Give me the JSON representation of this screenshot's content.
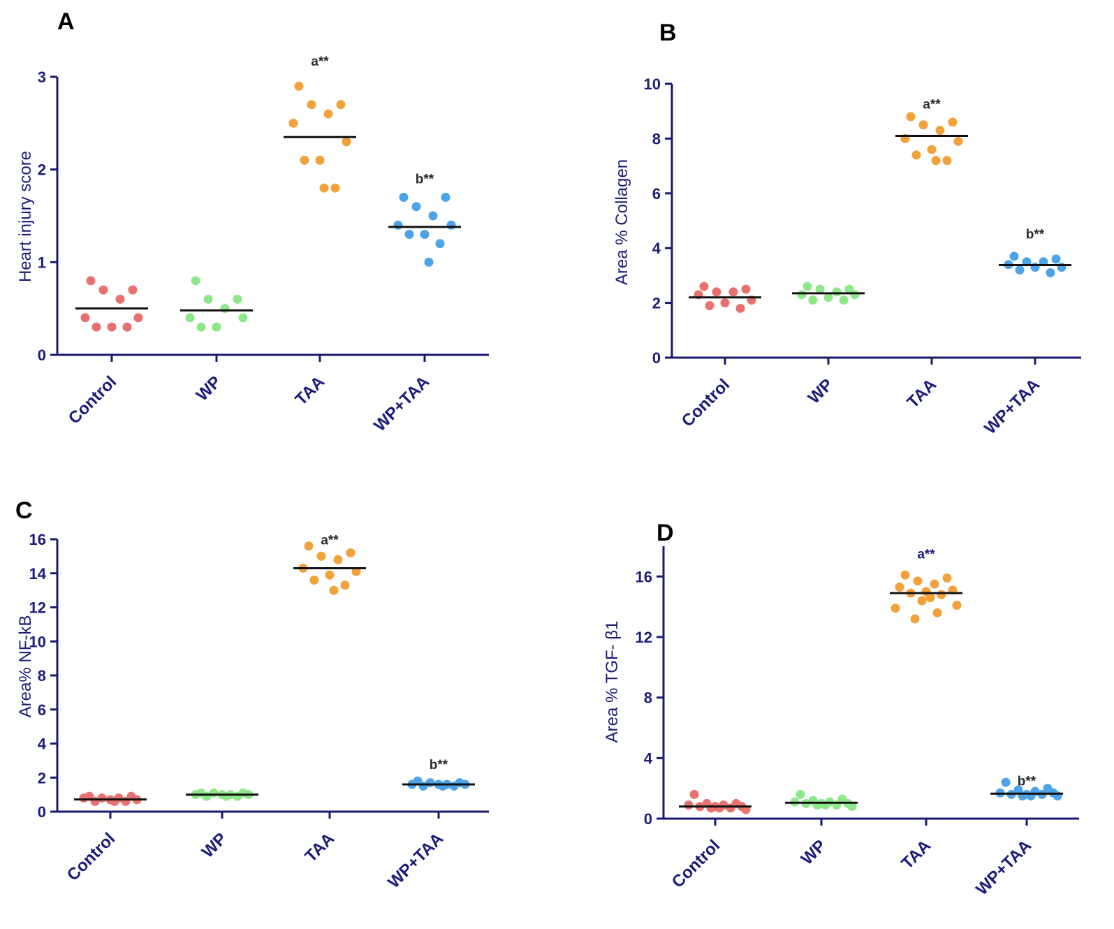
{
  "colors": {
    "axis": "#1a1a6e",
    "label": "#1c1c7a",
    "mean_line": "#111111",
    "groups": [
      "#e8716f",
      "#8ee88a",
      "#f2a23a",
      "#4da3e8"
    ]
  },
  "chart_data": [
    {
      "type": "scatter",
      "panel": "A",
      "categories": [
        "Control",
        "WP",
        "TAA",
        "WP+TAA"
      ],
      "ylabel": "Heart injury score",
      "ylim": [
        0,
        3
      ],
      "yticks": [
        0,
        1,
        2,
        3
      ],
      "series": [
        {
          "name": "Control",
          "values": [
            0.8,
            0.7,
            0.7,
            0.6,
            0.4,
            0.4,
            0.3,
            0.3,
            0.3
          ],
          "mean": 0.5
        },
        {
          "name": "WP",
          "values": [
            0.8,
            0.6,
            0.6,
            0.5,
            0.4,
            0.4,
            0.3,
            0.3
          ],
          "mean": 0.48
        },
        {
          "name": "TAA",
          "values": [
            2.9,
            2.7,
            2.7,
            2.6,
            2.5,
            2.3,
            2.1,
            2.1,
            1.8,
            1.8
          ],
          "mean": 2.35
        },
        {
          "name": "WP+TAA",
          "values": [
            1.7,
            1.7,
            1.6,
            1.5,
            1.4,
            1.4,
            1.3,
            1.3,
            1.2,
            1.0
          ],
          "mean": 1.38
        }
      ],
      "annotations": [
        {
          "group": "TAA",
          "text": "a**",
          "y": 3.12
        },
        {
          "group": "WP+TAA",
          "text": "b**",
          "y": 1.85
        }
      ]
    },
    {
      "type": "scatter",
      "panel": "B",
      "categories": [
        "Control",
        "WP",
        "TAA",
        "WP+TAA"
      ],
      "ylabel": "Area % Collagen",
      "ylim": [
        0,
        10
      ],
      "yticks": [
        0,
        2,
        4,
        6,
        8,
        10
      ],
      "series": [
        {
          "name": "Control",
          "values": [
            2.6,
            2.5,
            2.4,
            2.4,
            2.3,
            2.1,
            2.0,
            1.9,
            1.8
          ],
          "mean": 2.2
        },
        {
          "name": "WP",
          "values": [
            2.6,
            2.5,
            2.5,
            2.4,
            2.3,
            2.3,
            2.2,
            2.1,
            2.1
          ],
          "mean": 2.35
        },
        {
          "name": "TAA",
          "values": [
            8.8,
            8.6,
            8.5,
            8.3,
            8.0,
            7.9,
            7.6,
            7.4,
            7.2,
            7.2
          ],
          "mean": 8.1
        },
        {
          "name": "WP+TAA",
          "values": [
            3.7,
            3.6,
            3.5,
            3.5,
            3.4,
            3.3,
            3.3,
            3.2,
            3.1
          ],
          "mean": 3.38
        }
      ],
      "annotations": [
        {
          "group": "TAA",
          "text": "a**",
          "y": 9.1
        },
        {
          "group": "WP+TAA",
          "text": "b**",
          "y": 4.35
        }
      ]
    },
    {
      "type": "scatter",
      "panel": "C",
      "categories": [
        "Control",
        "WP",
        "TAA",
        "WP+TAA"
      ],
      "ylabel": "Area% NF-kB",
      "ylim": [
        0,
        16
      ],
      "yticks": [
        0,
        2,
        4,
        6,
        8,
        10,
        12,
        14,
        16
      ],
      "series": [
        {
          "name": "Control",
          "values": [
            0.9,
            0.9,
            0.8,
            0.8,
            0.8,
            0.7,
            0.7,
            0.6,
            0.6,
            0.6
          ],
          "mean": 0.72
        },
        {
          "name": "WP",
          "values": [
            1.1,
            1.1,
            1.1,
            1.0,
            1.0,
            1.0,
            1.0,
            0.9,
            0.9,
            0.9
          ],
          "mean": 1.0
        },
        {
          "name": "TAA",
          "values": [
            15.6,
            15.2,
            15.0,
            14.8,
            14.3,
            14.1,
            13.9,
            13.6,
            13.3,
            13.0
          ],
          "mean": 14.3
        },
        {
          "name": "WP+TAA",
          "values": [
            1.8,
            1.7,
            1.7,
            1.6,
            1.6,
            1.6,
            1.6,
            1.5,
            1.5,
            1.5
          ],
          "mean": 1.6
        }
      ],
      "annotations": [
        {
          "group": "TAA",
          "text": "a**",
          "y": 15.7
        },
        {
          "group": "WP+TAA",
          "text": "b**",
          "y": 2.5
        }
      ]
    },
    {
      "type": "scatter",
      "panel": "D",
      "categories": [
        "Control",
        "WP",
        "TAA",
        "WP+TAA"
      ],
      "ylabel": "Area % TGF- β1",
      "ylim": [
        0,
        18
      ],
      "yticks": [
        0,
        4,
        8,
        12,
        16
      ],
      "series": [
        {
          "name": "Control",
          "values": [
            1.6,
            1.0,
            1.0,
            0.9,
            0.9,
            0.8,
            0.8,
            0.8,
            0.7,
            0.7,
            0.7,
            0.6
          ],
          "mean": 0.8
        },
        {
          "name": "WP",
          "values": [
            1.6,
            1.3,
            1.2,
            1.1,
            1.1,
            1.0,
            1.0,
            1.0,
            0.9,
            0.9,
            0.9,
            0.8
          ],
          "mean": 1.05
        },
        {
          "name": "TAA",
          "values": [
            16.1,
            15.9,
            15.7,
            15.5,
            15.3,
            15.1,
            15.0,
            14.9,
            14.8,
            14.6,
            14.4,
            14.1,
            13.9,
            13.6,
            13.2
          ],
          "mean": 14.9
        },
        {
          "name": "WP+TAA",
          "values": [
            2.4,
            2.0,
            1.9,
            1.8,
            1.7,
            1.7,
            1.6,
            1.6,
            1.6,
            1.5,
            1.5,
            1.5
          ],
          "mean": 1.65
        }
      ],
      "annotations": [
        {
          "group": "TAA",
          "text": "a**",
          "y": 17.2
        },
        {
          "group": "WP+TAA",
          "text": "b**",
          "y": 2.2
        }
      ]
    }
  ]
}
